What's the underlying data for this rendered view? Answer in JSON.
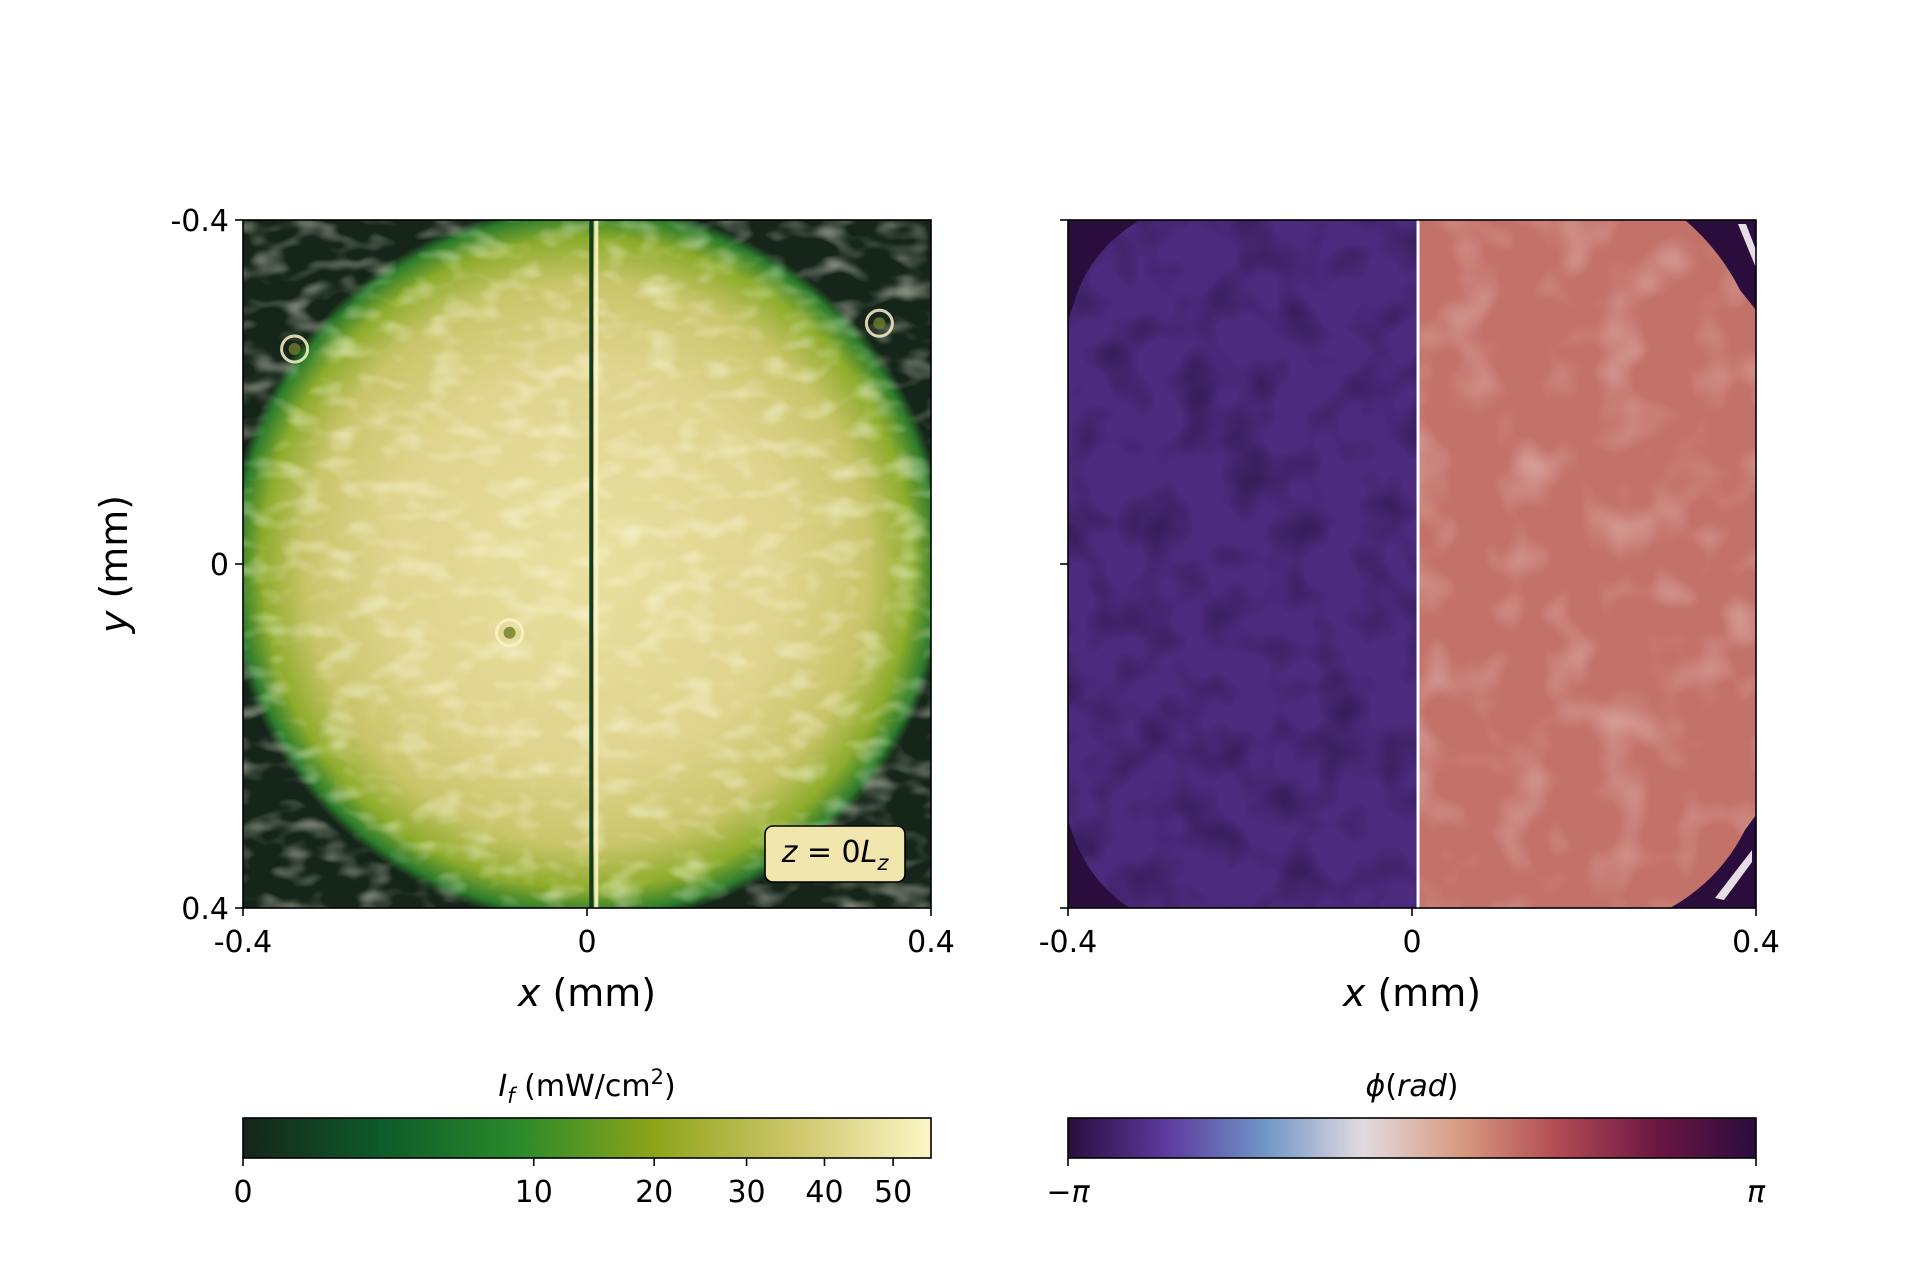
{
  "chart_data": [
    {
      "type": "heatmap",
      "panel": "intensity",
      "title": "",
      "xlabel_var": "x",
      "xlabel_unit": " (mm)",
      "ylabel_var": "y",
      "ylabel_unit": " (mm)",
      "xlim": [
        -0.4,
        0.4
      ],
      "ylim": [
        -0.4,
        0.4
      ],
      "x_ticks": [
        -0.4,
        0,
        0.4
      ],
      "x_tick_labels": [
        "-0.4",
        "0",
        "0.4"
      ],
      "y_ticks": [
        -0.4,
        0,
        0.4
      ],
      "y_tick_labels": [
        "-0.4",
        "0",
        "0.4"
      ],
      "y_inverted": true,
      "annotation": {
        "var": "z",
        "text_mid": " = 0",
        "sub_var": "L",
        "sub": "z"
      },
      "features": {
        "beam_radius_mm": 0.42,
        "dark_line_x_mm": 0.005,
        "ring_defects_mm": [
          [
            -0.09,
            0.08
          ],
          [
            0.34,
            -0.28
          ],
          [
            -0.34,
            -0.25
          ]
        ]
      },
      "colorbar": {
        "label_var": "I",
        "label_sub": "f",
        "label_unit": " (mW/cm",
        "label_exp": "2",
        "label_close": ")",
        "scale": "sqrt",
        "range": [
          0,
          56
        ],
        "ticks": [
          0,
          10,
          20,
          30,
          40,
          50
        ],
        "tick_labels": [
          "0",
          "10",
          "20",
          "30",
          "40",
          "50"
        ],
        "colormap": [
          "#16251a",
          "#0d5a2a",
          "#2a8a2a",
          "#8ea51a",
          "#cdc66a",
          "#fdf7c6"
        ]
      }
    },
    {
      "type": "heatmap",
      "panel": "phase",
      "title": "",
      "xlabel_var": "x",
      "xlabel_unit": " (mm)",
      "xlim": [
        -0.4,
        0.4
      ],
      "ylim": [
        -0.4,
        0.4
      ],
      "x_ticks": [
        -0.4,
        0,
        0.4
      ],
      "x_tick_labels": [
        "-0.4",
        "0",
        "0.4"
      ],
      "y_ticks": [
        -0.4,
        0,
        0.4
      ],
      "y_inverted": true,
      "features": {
        "step_x_mm": 0.007,
        "left_phase_rad": -2.55,
        "right_phase_rad": 0.9
      },
      "colorbar": {
        "label_var": "ϕ",
        "label_rest": "(",
        "label_unit_var": "rad",
        "label_close": ")",
        "range": [
          "-π",
          "π"
        ],
        "tick_labels": [
          "−π",
          "π"
        ],
        "colormap": [
          "#2a0c3d",
          "#5d3a9e",
          "#6f95c6",
          "#e2dbe0",
          "#d79a80",
          "#b04a53",
          "#6b1642",
          "#2a0c3d"
        ]
      }
    }
  ]
}
